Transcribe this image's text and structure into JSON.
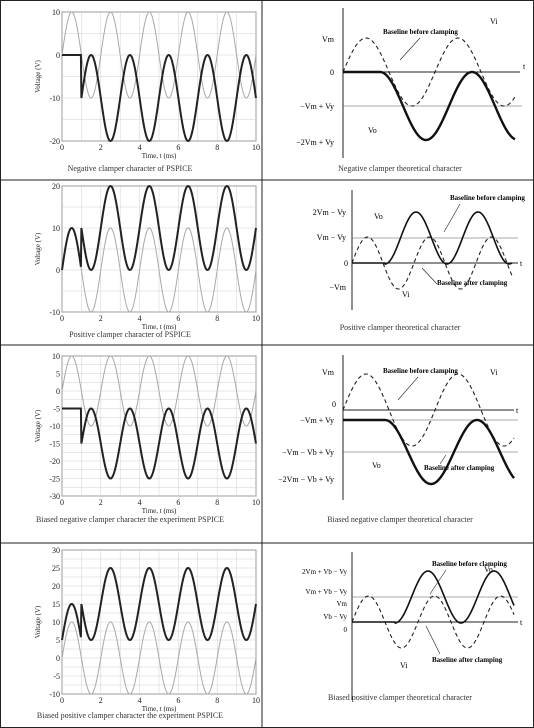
{
  "cells": [
    {
      "left": {
        "caption": "Negative clamper character of PSPICE",
        "chart_data": {
          "type": "line",
          "xlabel": "Time, t (ms)",
          "ylabel": "Voltage (V)",
          "xlim": [
            0,
            10
          ],
          "ylim": [
            -20,
            10
          ],
          "xticks": [
            "0",
            "2",
            "4",
            "6",
            "8",
            "10"
          ],
          "yticks": [
            "-20",
            "-10",
            "0",
            "10"
          ],
          "grid": true,
          "series": [
            {
              "name": "",
              "style": "thin-gray",
              "offset": 0,
              "amplitude": 10,
              "start": 0
            },
            {
              "name": "",
              "style": "thick-dark",
              "offset": -10,
              "amplitude": 10,
              "start": 1.0,
              "pre_value": 0
            }
          ]
        }
      },
      "right": {
        "caption": "Negative clamper theoretical character",
        "labels": {
          "vm": "Vm",
          "zero": "0",
          "t": "t",
          "neg_vm_vy": "−Vm + Vy",
          "neg_2vm_vy": "−2Vm + Vy",
          "vi": "Vi",
          "vo": "Vo",
          "baseline_before": "Baseline before clamping"
        }
      }
    },
    {
      "left": {
        "caption": "Positive clamper character of PSPICE",
        "chart_data": {
          "type": "line",
          "xlabel": "Time, t (ms)",
          "ylabel": "Voltage (V)",
          "xlim": [
            0,
            10
          ],
          "ylim": [
            -10,
            20
          ],
          "xticks": [
            "0",
            "2",
            "4",
            "6",
            "8",
            "10"
          ],
          "yticks": [
            "-10",
            "0",
            "10",
            "20"
          ],
          "grid": true,
          "series": [
            {
              "name": "",
              "style": "thin-gray",
              "offset": 0,
              "amplitude": 10,
              "start": 0
            },
            {
              "name": "",
              "style": "thick-dark",
              "offset": 10,
              "amplitude": 10,
              "start": 1.0,
              "pre_value": 0,
              "pre_hump": true
            }
          ]
        }
      },
      "right": {
        "caption": "Positive clamper theoretical character",
        "labels": {
          "two_vm_vy": "2Vm − Vy",
          "vm_vy": "Vm − Vy",
          "zero": "0",
          "t": "t",
          "neg_vm": "−Vm",
          "vo": "Vo",
          "vi": "Vi",
          "baseline_before": "Baseline before clamping",
          "baseline_after": "Baseline after clamping"
        }
      }
    },
    {
      "left": {
        "caption": "Biased negative clamper character the experiment PSPICE",
        "chart_data": {
          "type": "line",
          "xlabel": "Time, t (ms)",
          "ylabel": "Voltage (V)",
          "xlim": [
            0,
            10
          ],
          "ylim": [
            -30,
            10
          ],
          "xticks": [
            "0",
            "2",
            "4",
            "6",
            "8",
            "10"
          ],
          "yticks": [
            "-30",
            "-25",
            "-20",
            "-15",
            "-10",
            "-5",
            "0",
            "5",
            "10"
          ],
          "grid": true,
          "series": [
            {
              "name": "",
              "style": "thin-gray",
              "offset": 0,
              "amplitude": 10,
              "start": 0
            },
            {
              "name": "",
              "style": "thick-dark",
              "offset": -15,
              "amplitude": 10,
              "start": 1.0,
              "pre_value": -5
            }
          ]
        }
      },
      "right": {
        "caption": "Biased negative clamper theoretical character",
        "labels": {
          "vm": "Vm",
          "zero": "0",
          "t": "t",
          "neg_vm_vy": "−Vm + Vy",
          "neg_vm_vb_vy": "−Vm − Vb + Vy",
          "neg_2vm_vb_vy": "−2Vm − Vb + Vy",
          "vi": "Vi",
          "vo": "Vo",
          "baseline_before": "Baseline before clamping",
          "baseline_after": "Baseline after clamping"
        }
      }
    },
    {
      "left": {
        "caption": "Biased positive clamper character the experiment PSPICE",
        "chart_data": {
          "type": "line",
          "xlabel": "Time, t (ms)",
          "ylabel": "Voltage (V)",
          "xlim": [
            0,
            10
          ],
          "ylim": [
            -10,
            30
          ],
          "xticks": [
            "0",
            "2",
            "4",
            "6",
            "8",
            "10"
          ],
          "yticks": [
            "-10",
            "-5",
            "0",
            "5",
            "10",
            "15",
            "20",
            "25",
            "30"
          ],
          "grid": true,
          "series": [
            {
              "name": "",
              "style": "thin-gray",
              "offset": 0,
              "amplitude": 10,
              "start": 0
            },
            {
              "name": "",
              "style": "thick-dark",
              "offset": 15,
              "amplitude": 10,
              "start": 1.0,
              "pre_value": 5,
              "pre_hump": true
            }
          ]
        }
      },
      "right": {
        "caption": "Biased positive clamper theoretical character",
        "labels": {
          "two_vm_vb_vy": "2Vm + Vb − Vy",
          "vm_vb_vy": "Vm + Vb − Vy",
          "vm": "Vm",
          "vb_vy": "Vb − Vy",
          "zero": "0",
          "t": "t",
          "vo": "Vo",
          "vi": "Vi",
          "baseline_before": "Baseline before clamping",
          "baseline_after": "Baseline after clamping"
        }
      }
    }
  ]
}
